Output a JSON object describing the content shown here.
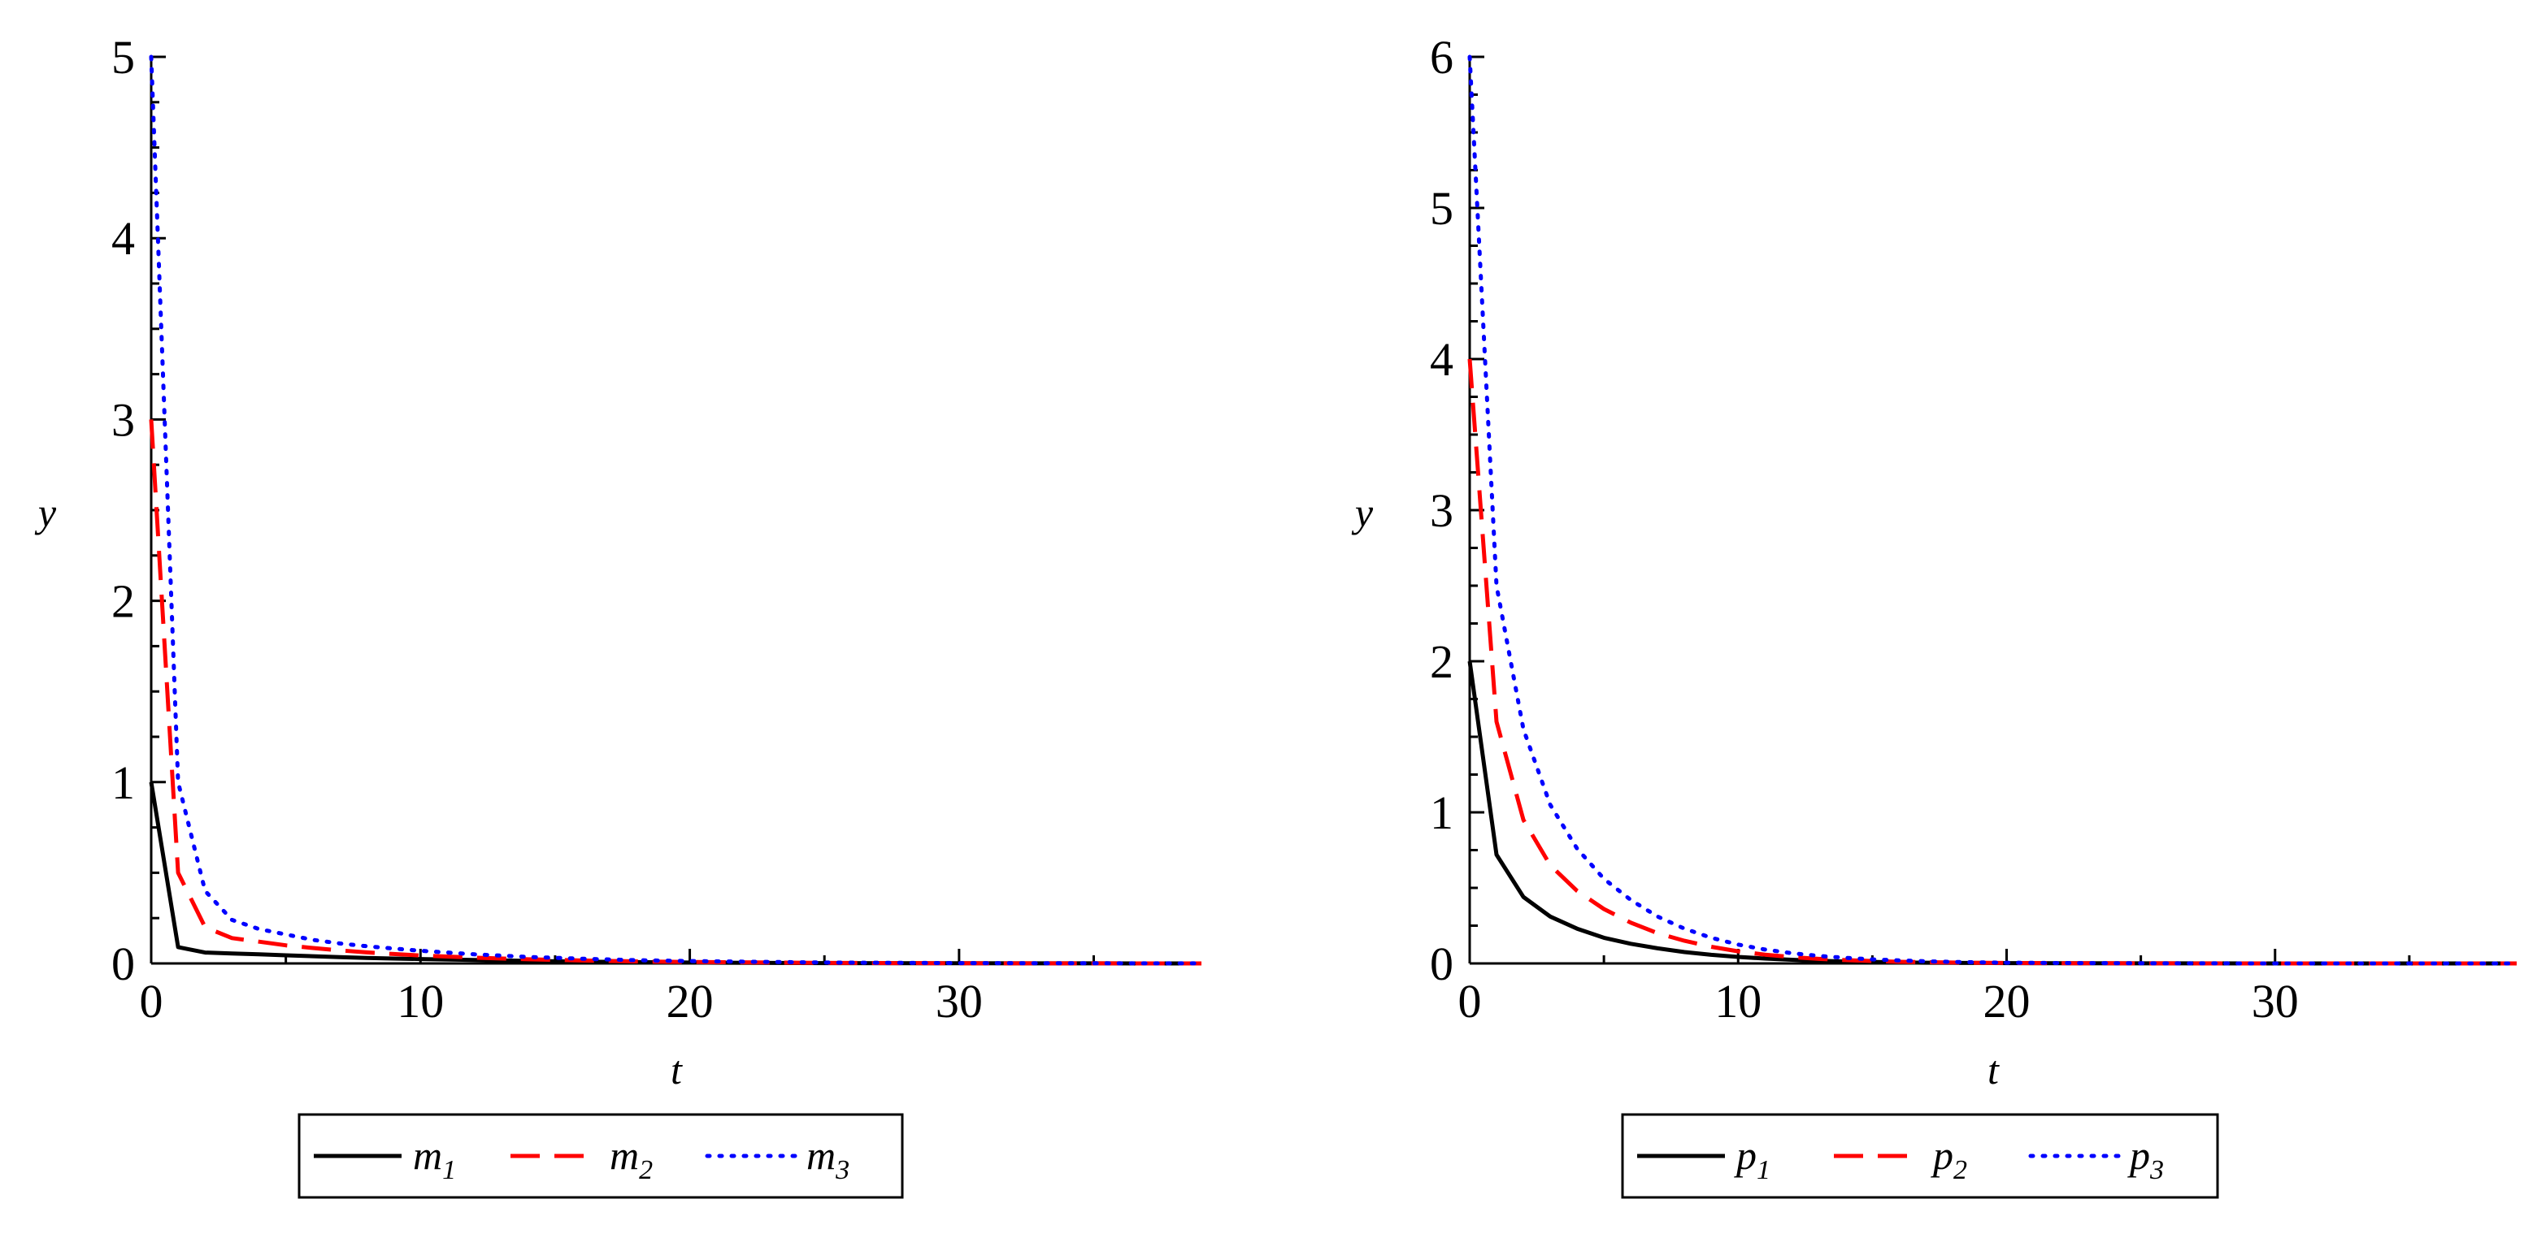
{
  "chart_data": [
    {
      "type": "line",
      "xlabel": "t",
      "ylabel": "y",
      "xlim": [
        0,
        39
      ],
      "ylim": [
        0,
        5
      ],
      "xticks": [
        0,
        10,
        20,
        30
      ],
      "yticks": [
        0,
        1,
        2,
        3,
        4,
        5
      ],
      "legend_position": "bottom",
      "x": [
        0,
        1,
        2,
        3,
        4,
        5,
        6,
        7,
        8,
        9,
        10,
        12,
        14,
        16,
        18,
        20,
        25,
        30,
        35,
        39
      ],
      "series": [
        {
          "name": "m",
          "subscript": "1",
          "color": "#000000",
          "dash": "solid",
          "values": [
            1.0,
            0.09,
            0.06,
            0.055,
            0.05,
            0.045,
            0.04,
            0.035,
            0.03,
            0.027,
            0.024,
            0.019,
            0.014,
            0.01,
            0.007,
            0.005,
            0.002,
            0.001,
            0.0005,
            0.0002
          ]
        },
        {
          "name": "m",
          "subscript": "2",
          "color": "#ff0000",
          "dash": "dashed",
          "values": [
            3.0,
            0.5,
            0.2,
            0.14,
            0.12,
            0.1,
            0.085,
            0.072,
            0.061,
            0.052,
            0.044,
            0.032,
            0.023,
            0.016,
            0.011,
            0.008,
            0.003,
            0.001,
            0.0005,
            0.0002
          ]
        },
        {
          "name": "m",
          "subscript": "3",
          "color": "#0000ff",
          "dash": "dotted",
          "values": [
            5.0,
            1.0,
            0.4,
            0.24,
            0.19,
            0.16,
            0.13,
            0.11,
            0.095,
            0.082,
            0.07,
            0.05,
            0.036,
            0.026,
            0.018,
            0.013,
            0.005,
            0.002,
            0.001,
            0.0005
          ]
        }
      ]
    },
    {
      "type": "line",
      "xlabel": "t",
      "ylabel": "y",
      "xlim": [
        0,
        39
      ],
      "ylim": [
        0,
        6
      ],
      "xticks": [
        0,
        10,
        20,
        30
      ],
      "yticks": [
        0,
        1,
        2,
        3,
        4,
        5,
        6
      ],
      "legend_position": "bottom",
      "x": [
        0,
        1,
        2,
        3,
        4,
        5,
        6,
        7,
        8,
        9,
        10,
        11,
        12,
        13,
        14,
        15,
        16,
        17,
        18,
        19,
        20,
        22,
        25,
        30,
        35,
        39
      ],
      "series": [
        {
          "name": "p",
          "subscript": "1",
          "color": "#000000",
          "dash": "solid",
          "values": [
            2.0,
            0.72,
            0.44,
            0.31,
            0.23,
            0.17,
            0.13,
            0.1,
            0.075,
            0.057,
            0.043,
            0.032,
            0.024,
            0.018,
            0.013,
            0.01,
            0.007,
            0.005,
            0.004,
            0.003,
            0.002,
            0.001,
            0.0005,
            0.0001,
            0.0,
            0.0
          ]
        },
        {
          "name": "p",
          "subscript": "2",
          "color": "#ff0000",
          "dash": "dashed",
          "values": [
            4.0,
            1.6,
            0.95,
            0.65,
            0.48,
            0.36,
            0.27,
            0.2,
            0.15,
            0.11,
            0.08,
            0.058,
            0.042,
            0.03,
            0.022,
            0.016,
            0.011,
            0.008,
            0.006,
            0.004,
            0.003,
            0.0015,
            0.0005,
            0.0001,
            0.0,
            0.0
          ]
        },
        {
          "name": "p",
          "subscript": "3",
          "color": "#0000ff",
          "dash": "dotted",
          "values": [
            6.0,
            2.5,
            1.55,
            1.05,
            0.76,
            0.56,
            0.42,
            0.31,
            0.23,
            0.17,
            0.125,
            0.092,
            0.068,
            0.05,
            0.037,
            0.027,
            0.02,
            0.014,
            0.01,
            0.007,
            0.005,
            0.0025,
            0.001,
            0.0002,
            0.0,
            0.0
          ]
        }
      ]
    }
  ]
}
